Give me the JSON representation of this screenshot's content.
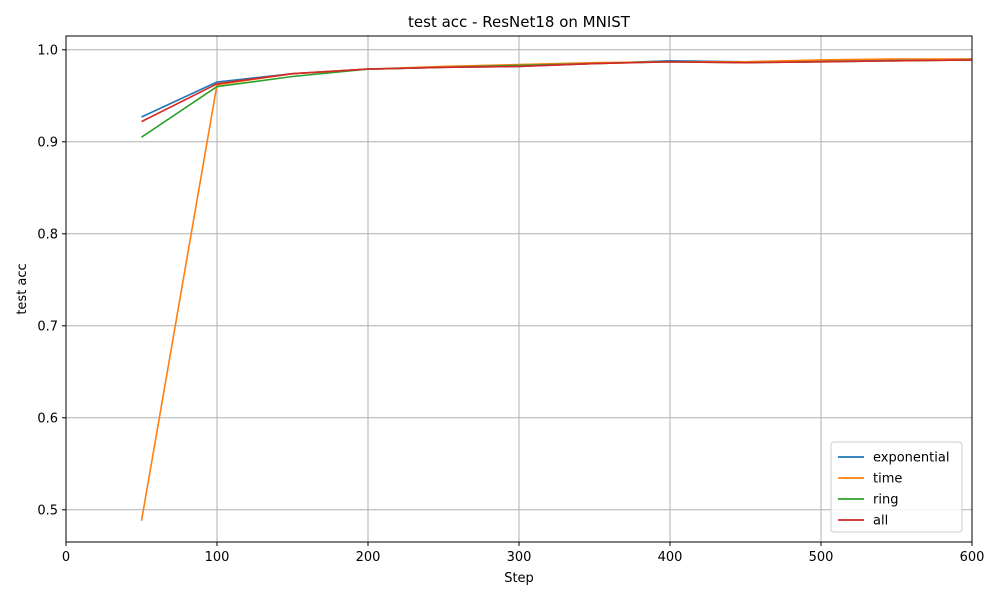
{
  "chart_data": {
    "type": "line",
    "title": "test acc - ResNet18 on MNIST",
    "xlabel": "Step",
    "ylabel": "test acc",
    "xlim": [
      0,
      600
    ],
    "ylim": [
      0.465,
      1.015
    ],
    "xticks": [
      0,
      100,
      200,
      300,
      400,
      500,
      600
    ],
    "xtick_labels": [
      "0",
      "100",
      "200",
      "300",
      "400",
      "500",
      "600"
    ],
    "yticks": [
      0.5,
      0.6,
      0.7,
      0.8,
      0.9,
      1.0
    ],
    "ytick_labels": [
      "0.5",
      "0.6",
      "0.7",
      "0.8",
      "0.9",
      "1.0"
    ],
    "grid": true,
    "legend_position": "lower-right",
    "x": [
      50,
      100,
      150,
      200,
      250,
      300,
      350,
      400,
      450,
      500,
      550,
      600
    ],
    "series": [
      {
        "name": "exponential",
        "color": "#1f77b4",
        "values": [
          0.927,
          0.965,
          0.974,
          0.979,
          0.981,
          0.982,
          0.985,
          0.988,
          0.987,
          0.988,
          0.989,
          0.99
        ]
      },
      {
        "name": "time",
        "color": "#ff7f0e",
        "values": [
          0.488,
          0.962,
          0.974,
          0.979,
          0.982,
          0.984,
          0.986,
          0.987,
          0.987,
          0.989,
          0.99,
          0.99
        ]
      },
      {
        "name": "ring",
        "color": "#2ca02c",
        "values": [
          0.905,
          0.96,
          0.971,
          0.979,
          0.981,
          0.983,
          0.985,
          0.987,
          0.986,
          0.987,
          0.988,
          0.989
        ]
      },
      {
        "name": "all",
        "color": "#d62728",
        "values": [
          0.922,
          0.963,
          0.974,
          0.979,
          0.981,
          0.982,
          0.985,
          0.987,
          0.986,
          0.987,
          0.988,
          0.989
        ]
      }
    ]
  }
}
